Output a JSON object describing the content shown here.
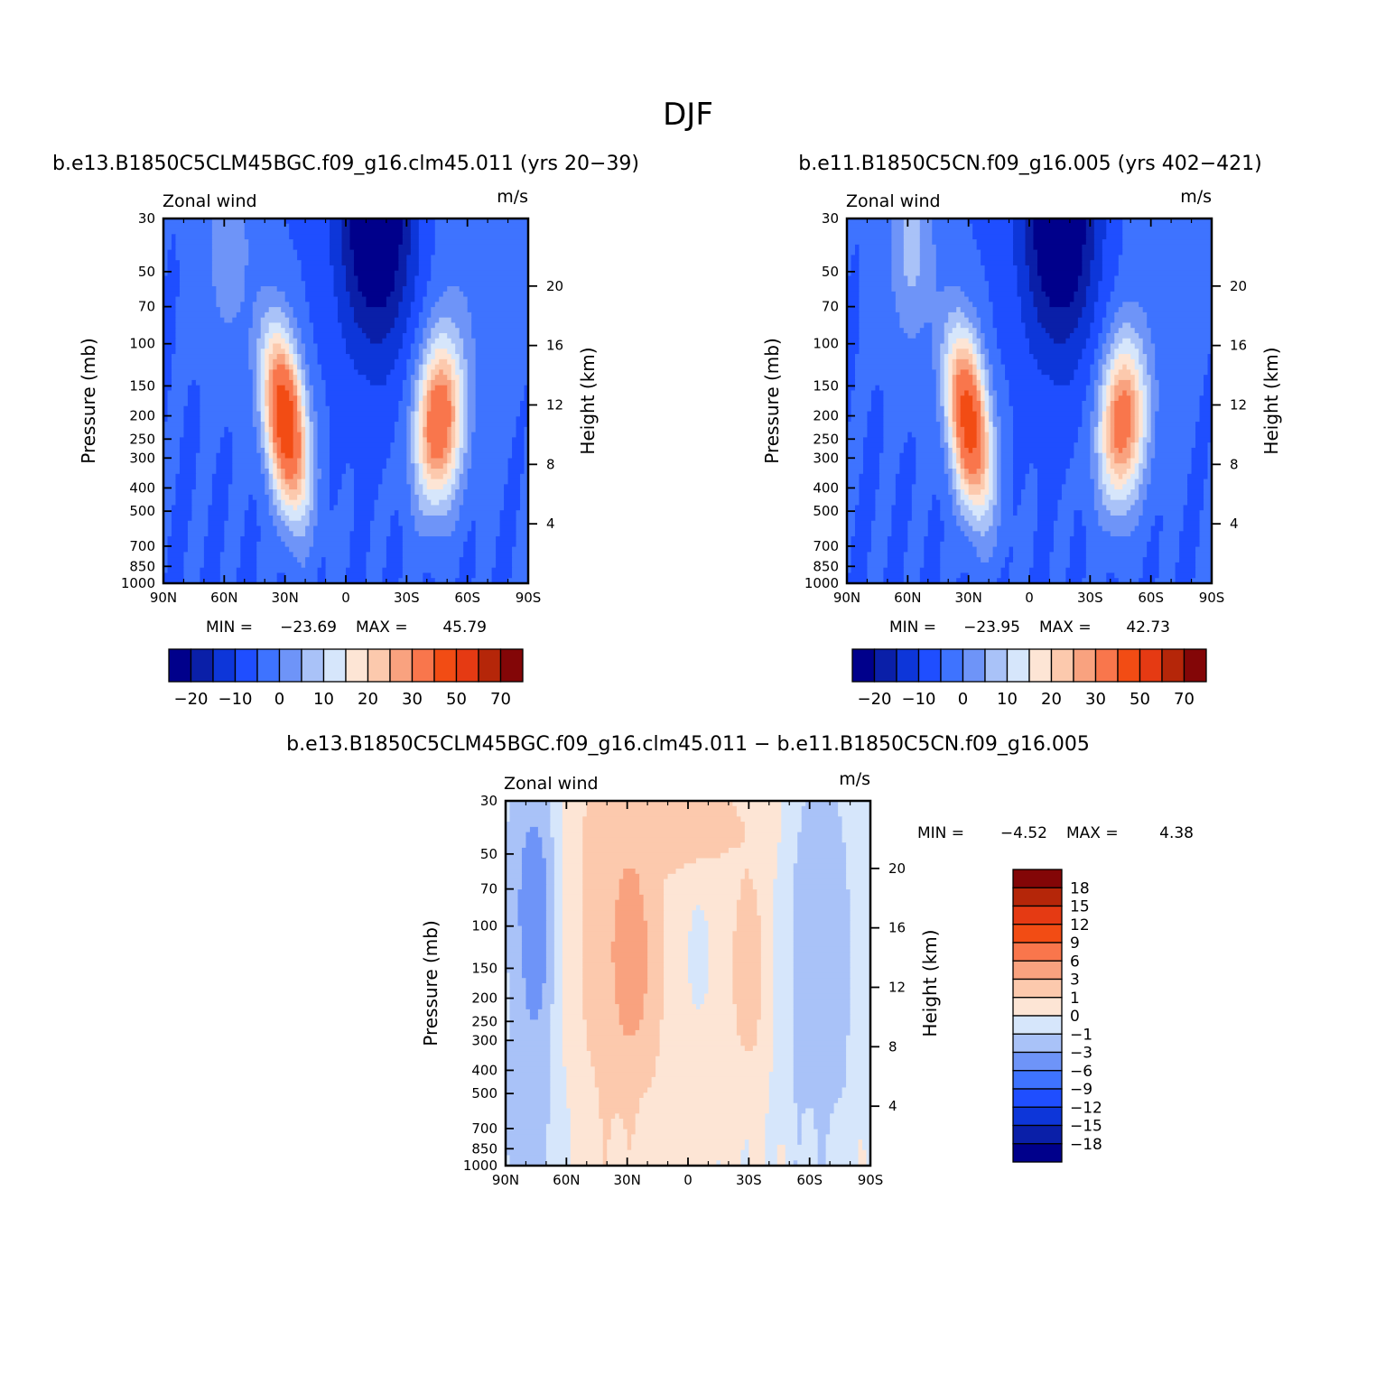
{
  "figure": {
    "season_title": "DJF"
  },
  "chart_data": [
    {
      "type": "heatmap",
      "title": "b.e13.B1850C5CLM45BGC.f09_g16.clm45.011 (yrs 20−39)",
      "left_label": "Zonal wind",
      "right_label": "m/s",
      "ylabel": "Pressure (mb)",
      "ylabel_right": "Height (km)",
      "x_ticks": [
        "90N",
        "60N",
        "30N",
        "0",
        "30S",
        "60S",
        "90S"
      ],
      "xlim": [
        90,
        -90
      ],
      "y_ticks": [
        "30",
        "50",
        "70",
        "100",
        "150",
        "200",
        "250",
        "300",
        "400",
        "500",
        "700",
        "850",
        "1000"
      ],
      "ylim": [
        1000,
        30
      ],
      "y_right_ticks": [
        "20",
        "16",
        "12",
        "8",
        "4"
      ],
      "min_label": "MIN =",
      "min_value": "−23.69",
      "max_label": "MAX =",
      "max_value": "45.79",
      "colorbar_labels": [
        "−20",
        "−10",
        "0",
        "10",
        "20",
        "30",
        "50",
        "70"
      ],
      "features": [
        {
          "name": "NH subtropical jet",
          "lat": 30,
          "p": 200,
          "peak": 45.79
        },
        {
          "name": "SH subtropical jet",
          "lat": -48,
          "p": 220,
          "peak": 35
        },
        {
          "name": "tropical easterlies",
          "lat": -15,
          "p": 30,
          "peak": -23.69
        }
      ]
    },
    {
      "type": "heatmap",
      "title": "b.e11.B1850C5CN.f09_g16.005 (yrs 402−421)",
      "left_label": "Zonal wind",
      "right_label": "m/s",
      "ylabel": "Pressure (mb)",
      "ylabel_right": "Height (km)",
      "x_ticks": [
        "90N",
        "60N",
        "30N",
        "0",
        "30S",
        "60S",
        "90S"
      ],
      "xlim": [
        90,
        -90
      ],
      "y_ticks": [
        "30",
        "50",
        "70",
        "100",
        "150",
        "200",
        "250",
        "300",
        "400",
        "500",
        "700",
        "850",
        "1000"
      ],
      "ylim": [
        1000,
        30
      ],
      "y_right_ticks": [
        "20",
        "16",
        "12",
        "8",
        "4"
      ],
      "min_label": "MIN =",
      "min_value": "−23.95",
      "max_label": "MAX =",
      "max_value": "42.73",
      "colorbar_labels": [
        "−20",
        "−10",
        "0",
        "10",
        "20",
        "30",
        "50",
        "70"
      ],
      "features": [
        {
          "name": "NH subtropical jet",
          "lat": 30,
          "p": 200,
          "peak": 42.73
        },
        {
          "name": "SH subtropical jet",
          "lat": -48,
          "p": 220,
          "peak": 32
        },
        {
          "name": "tropical easterlies",
          "lat": -15,
          "p": 30,
          "peak": -23.95
        }
      ]
    },
    {
      "type": "heatmap",
      "title": "b.e13.B1850C5CLM45BGC.f09_g16.clm45.011 − b.e11.B1850C5CN.f09_g16.005",
      "left_label": "Zonal wind",
      "right_label": "m/s",
      "ylabel": "Pressure (mb)",
      "ylabel_right": "Height (km)",
      "x_ticks": [
        "90N",
        "60N",
        "30N",
        "0",
        "30S",
        "60S",
        "90S"
      ],
      "xlim": [
        90,
        -90
      ],
      "y_ticks": [
        "30",
        "50",
        "70",
        "100",
        "150",
        "200",
        "250",
        "300",
        "400",
        "500",
        "700",
        "850",
        "1000"
      ],
      "ylim": [
        1000,
        30
      ],
      "y_right_ticks": [
        "20",
        "16",
        "12",
        "8",
        "4"
      ],
      "min_label": "MIN =",
      "min_value": "−4.52",
      "max_label": "MAX =",
      "max_value": "4.38",
      "colorbar_labels": [
        "18",
        "15",
        "12",
        "9",
        "6",
        "3",
        "1",
        "0",
        "−1",
        "−3",
        "−6",
        "−9",
        "−12",
        "−15",
        "−18"
      ]
    }
  ],
  "palette": [
    "#00008b",
    "#0a1fa8",
    "#0d36d9",
    "#1f4eff",
    "#3e73ff",
    "#6e94f8",
    "#a9c2f8",
    "#d6e6fb",
    "#fde5d5",
    "#fcc9ad",
    "#f9a27f",
    "#f9764c",
    "#f24c14",
    "#e53a13",
    "#b52609",
    "#830607"
  ]
}
